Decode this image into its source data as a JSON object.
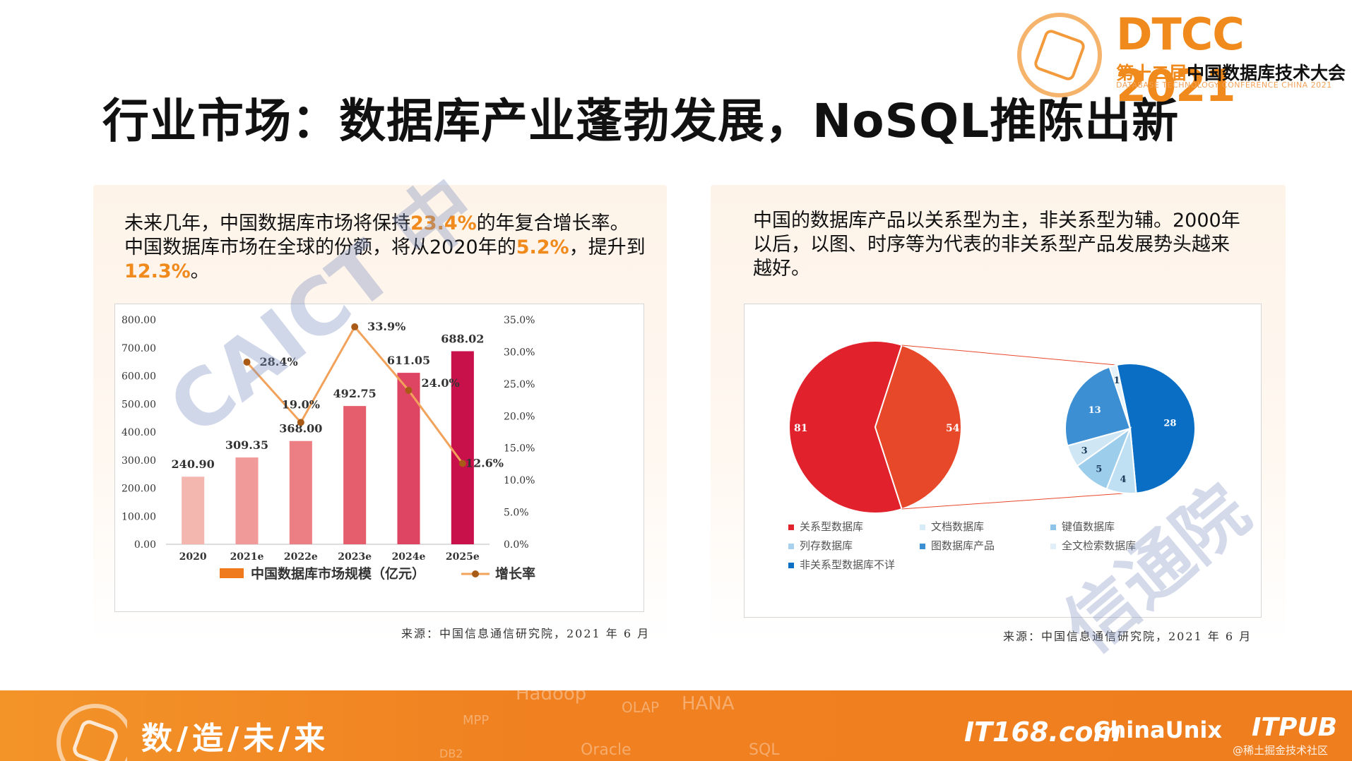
{
  "header": {
    "title": "行业市场：数据库产业蓬勃发展，NoSQL推陈出新",
    "brand": "DTCC 2021",
    "brand_sub_prefix": "第十二届",
    "brand_sub_main": "中国数据库技术大会",
    "brand_en": "DATABASE TECHNOLOGY CONFERENCE CHINA 2021"
  },
  "left": {
    "para_1": "未来几年，中国数据库市场将保持",
    "hl_1": "23.4%",
    "para_2": "的年复合增长率。中国数据库市场在全球的份额，将从2020年的",
    "hl_2": "5.2%",
    "para_3": "，提升到",
    "hl_3": "12.3%",
    "para_4": "。",
    "source": "来源：中国信息通信研究院，2021 年 6 月",
    "watermark": "CAICT 中"
  },
  "right": {
    "para": "中国的数据库产品以关系型为主，非关系型为辅。2000年以后，以图、时序等为代表的非关系型产品发展势头越来越好。",
    "source": "来源：中国信息通信研究院，2021 年 6 月",
    "watermark": "信通院"
  },
  "footer": {
    "slogan": "数/造/未/来",
    "words": [
      "Hadoop",
      "MPP",
      "OLAP",
      "HANA",
      "DB2",
      "Oracle",
      "SQL"
    ],
    "brand_1": "IT168.com",
    "brand_2": "ChinaUnix",
    "brand_3": "ITPUB",
    "watermark": "@稀土掘金技术社区"
  },
  "colors": {
    "accent": "#f08a1c",
    "bar_colors": [
      "#f3b7b0",
      "#f09a9a",
      "#ec7f84",
      "#e45e6e",
      "#de4563",
      "#c8104a"
    ],
    "line": "#f2a25a",
    "line_marker": "#a85a16",
    "pie_main_left": "#e1212c",
    "pie_main_right": "#e8482a"
  },
  "chart_data": [
    {
      "type": "bar",
      "categories": [
        "2020",
        "2021e",
        "2022e",
        "2023e",
        "2024e",
        "2025e"
      ],
      "series": [
        {
          "name": "中国数据库市场规模（亿元）",
          "type": "bar",
          "values": [
            240.9,
            309.35,
            368.0,
            492.75,
            611.05,
            688.02
          ],
          "labels": [
            "240.90",
            "309.35",
            "368.00",
            "492.75",
            "611.05",
            "688.02"
          ]
        },
        {
          "name": "增长率",
          "type": "line",
          "axis": "right",
          "values": [
            null,
            28.4,
            19.0,
            33.9,
            24.0,
            12.6
          ],
          "labels": [
            "",
            "28.4%",
            "19.0%",
            "33.9%",
            "24.0%",
            "12.6%"
          ]
        }
      ],
      "y_left": {
        "ylim": [
          0,
          800
        ],
        "ticks": [
          "0.00",
          "100.00",
          "200.00",
          "300.00",
          "400.00",
          "500.00",
          "600.00",
          "700.00",
          "800.00"
        ]
      },
      "y_right": {
        "ylim": [
          0,
          35
        ],
        "ticks": [
          "0.0%",
          "5.0%",
          "10.0%",
          "15.0%",
          "20.0%",
          "25.0%",
          "30.0%",
          "35.0%"
        ]
      },
      "legend": "bottom"
    },
    {
      "type": "pie",
      "main": {
        "slices": [
          {
            "name": "关系型数据库",
            "value": 81,
            "label": "81"
          },
          {
            "name": "非关系型数据库",
            "value": 54,
            "label": "54"
          }
        ]
      },
      "breakdown": {
        "slices": [
          {
            "name": "非关系型数据库不详",
            "value": 28,
            "label": "28",
            "color": "#0a6fc4"
          },
          {
            "name": "全文检索数据库",
            "value": 4,
            "label": "4",
            "color": "#bfe0f3"
          },
          {
            "name": "图数据库产品",
            "value": 5,
            "label": "5",
            "color": "#9ccdeb"
          },
          {
            "name": "列存数据库",
            "value": 3,
            "label": "3",
            "color": "#cfe6f4"
          },
          {
            "name": "键值数据库",
            "value": 13,
            "label": "13",
            "color": "#3d8fd3"
          },
          {
            "name": "文档数据库",
            "value": 1,
            "label": "1",
            "color": "#e6f2fa"
          }
        ]
      },
      "legend": [
        {
          "name": "关系型数据库",
          "color": "#e1212c"
        },
        {
          "name": "文档数据库",
          "color": "#d7ecf8"
        },
        {
          "name": "键值数据库",
          "color": "#8fc4e8"
        },
        {
          "name": "列存数据库",
          "color": "#a7d3ee"
        },
        {
          "name": "图数据库产品",
          "color": "#3d8fd3"
        },
        {
          "name": "全文检索数据库",
          "color": "#e0eff9"
        },
        {
          "name": "非关系型数据库不详",
          "color": "#0a6fc4"
        }
      ],
      "legend_position": "bottom"
    }
  ]
}
